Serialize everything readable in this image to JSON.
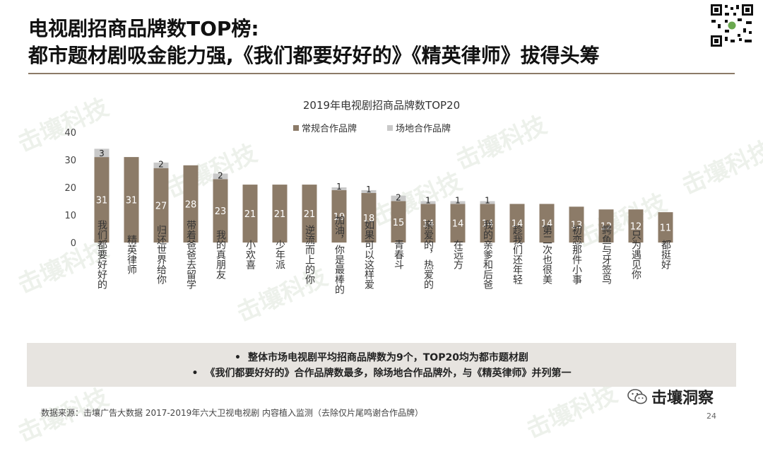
{
  "title": {
    "line1": "电视剧招商品牌数TOP榜:",
    "line2": "都市题材剧吸金能力强,《我们都要好好的》《精英律师》拔得头筹"
  },
  "watermark": "击壤科技",
  "chart_data": {
    "type": "bar",
    "stacked": true,
    "title": "2019年电视剧招商品牌数TOP20",
    "ylim": [
      0,
      40
    ],
    "yticks": [
      0,
      10,
      20,
      30,
      40
    ],
    "legend_position": "top",
    "categories": [
      "我们都要好好的",
      "精英律师",
      "归还世界给你",
      "带着爸爸去留学",
      "我的真朋友",
      "小欢喜",
      "少年派",
      "逆流而上的你",
      "加油，你是最棒的",
      "如果可以这样爱",
      "青春斗",
      "亲爱的，热爱的",
      "在远方",
      "我的亲爹和后爸",
      "趁我们还年轻",
      "第二次也很美",
      "初恋那件小事",
      "鳄鱼与牙签鸟",
      "只为遇见你",
      "都挺好"
    ],
    "series": [
      {
        "name": "常规合作品牌",
        "color": "#8c7b68",
        "values": [
          31,
          31,
          27,
          28,
          23,
          21,
          21,
          21,
          19,
          18,
          15,
          14,
          14,
          14,
          14,
          14,
          13,
          12,
          12,
          11
        ]
      },
      {
        "name": "场地合作品牌",
        "color": "#c9c9c9",
        "values": [
          3,
          0,
          2,
          0,
          2,
          0,
          0,
          0,
          1,
          1,
          2,
          1,
          1,
          1,
          0,
          0,
          0,
          0,
          0,
          0
        ]
      }
    ]
  },
  "summary": {
    "bullet": "•",
    "line1": "整体市场电视剧平均招商品牌数为9个，TOP20均为都市题材剧",
    "line2": "《我们都要好好的》合作品牌数最多，除场地合作品牌外，与《精英律师》并列第一"
  },
  "footer": {
    "source": "数据来源：击壤广告大数据  2017-2019年六大卫视电视剧 内容植入监测（去除仅片尾鸣谢合作品牌）",
    "brand": "击壤洞察",
    "page_number": "24"
  }
}
